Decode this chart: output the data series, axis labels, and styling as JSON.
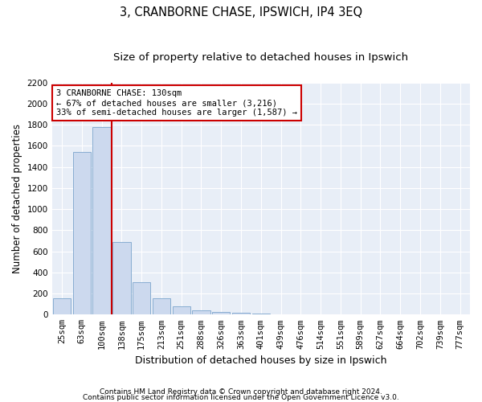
{
  "title": "3, CRANBORNE CHASE, IPSWICH, IP4 3EQ",
  "subtitle": "Size of property relative to detached houses in Ipswich",
  "xlabel": "Distribution of detached houses by size in Ipswich",
  "ylabel": "Number of detached properties",
  "categories": [
    "25sqm",
    "63sqm",
    "100sqm",
    "138sqm",
    "175sqm",
    "213sqm",
    "251sqm",
    "288sqm",
    "326sqm",
    "363sqm",
    "401sqm",
    "439sqm",
    "476sqm",
    "514sqm",
    "551sqm",
    "589sqm",
    "627sqm",
    "664sqm",
    "702sqm",
    "739sqm",
    "777sqm"
  ],
  "values": [
    155,
    1540,
    1780,
    690,
    310,
    155,
    80,
    40,
    25,
    18,
    10,
    0,
    0,
    0,
    0,
    0,
    0,
    0,
    0,
    0,
    0
  ],
  "bar_color": "#ccd9ee",
  "bar_edge_color": "#7ba4cc",
  "vline_color": "#cc0000",
  "vline_x_index": 2.5,
  "annotation_text": "3 CRANBORNE CHASE: 130sqm\n← 67% of detached houses are smaller (3,216)\n33% of semi-detached houses are larger (1,587) →",
  "annotation_box_edgecolor": "#cc0000",
  "ylim": [
    0,
    2200
  ],
  "yticks": [
    0,
    200,
    400,
    600,
    800,
    1000,
    1200,
    1400,
    1600,
    1800,
    2000,
    2200
  ],
  "footer1": "Contains HM Land Registry data © Crown copyright and database right 2024.",
  "footer2": "Contains public sector information licensed under the Open Government Licence v3.0.",
  "bg_color": "#e8eef7",
  "title_fontsize": 10.5,
  "subtitle_fontsize": 9.5,
  "xlabel_fontsize": 9,
  "ylabel_fontsize": 8.5,
  "tick_fontsize": 7.5,
  "annot_fontsize": 7.5,
  "footer_fontsize": 6.5
}
